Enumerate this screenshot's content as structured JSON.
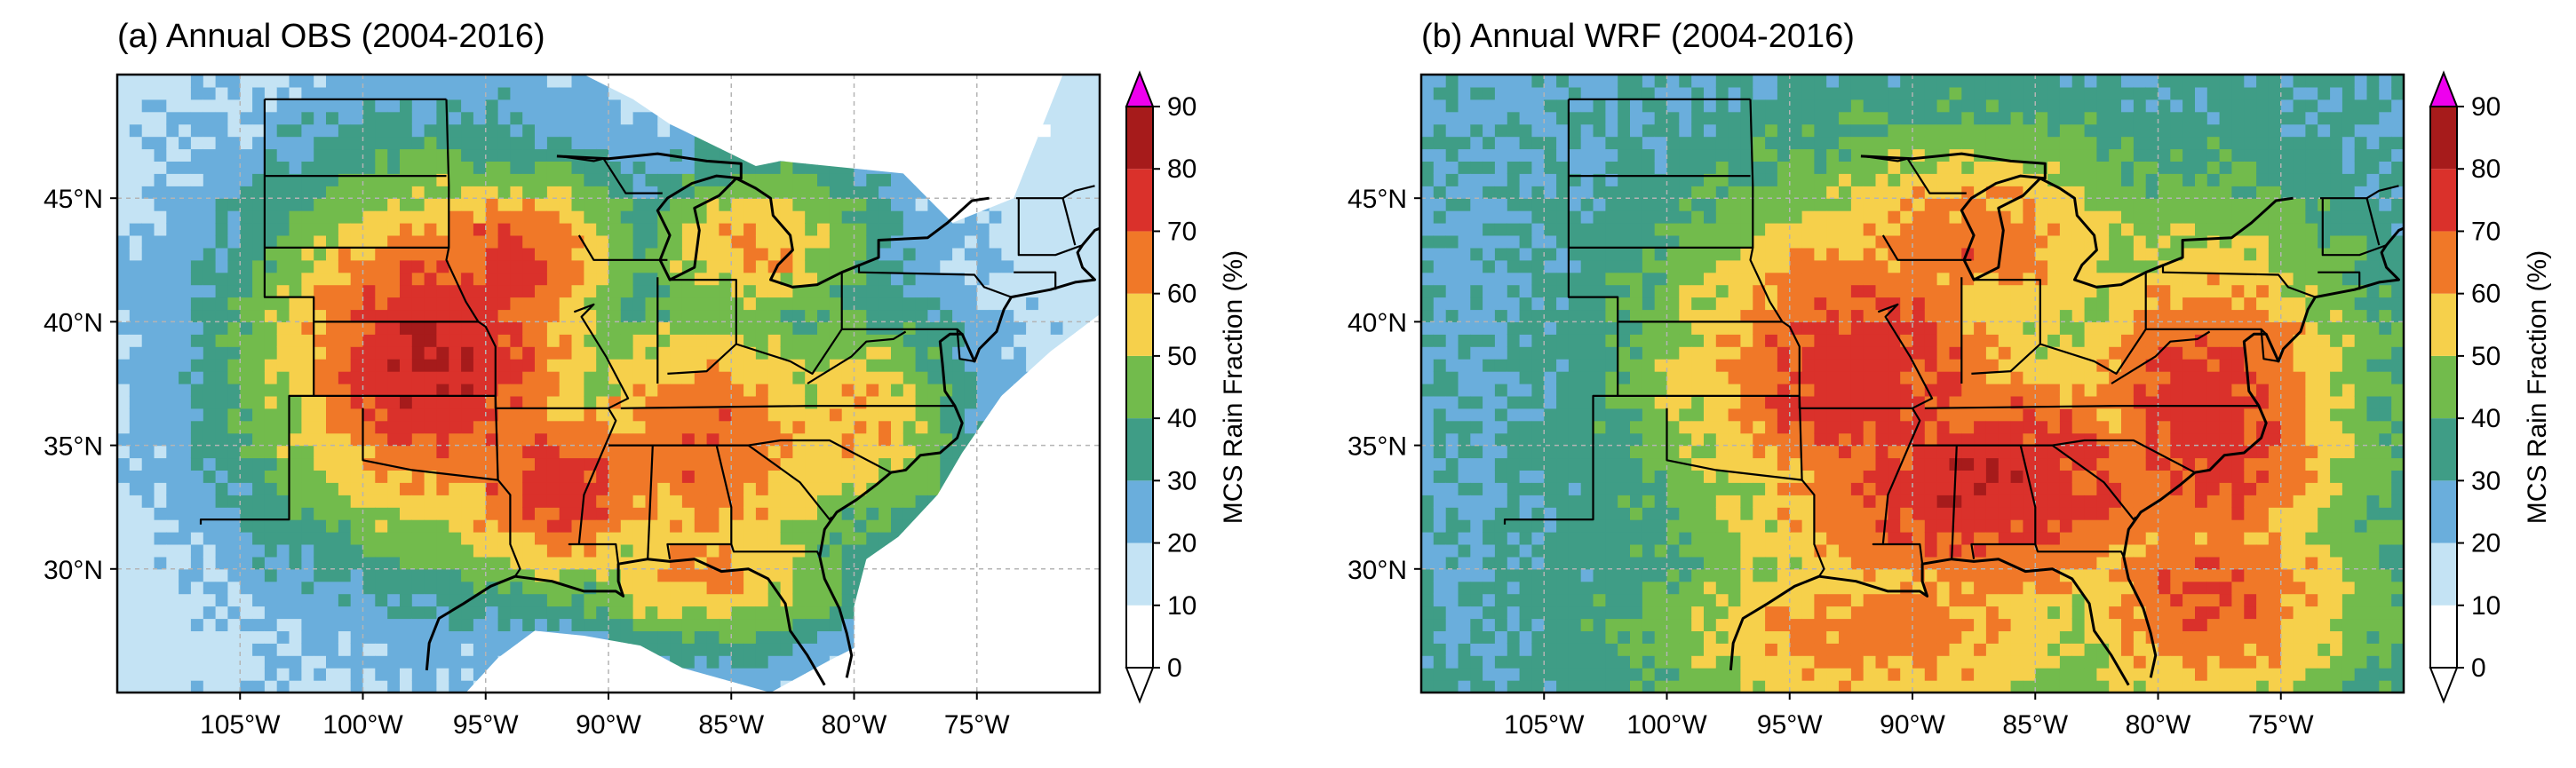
{
  "figure": {
    "panels": [
      {
        "title": "(a) Annual OBS (2004-2016)"
      },
      {
        "title": "(b) Annual WRF (2004-2016)"
      }
    ]
  },
  "colors": {
    "bins": [
      "#ffffff",
      "#c4e3f4",
      "#6aaedc",
      "#3f9d86",
      "#72bb4c",
      "#f6d04b",
      "#f07828",
      "#da312b",
      "#a61b1b"
    ],
    "extend_max": "#ee00ee",
    "ocean": "#ffffff",
    "boundary": "#000000",
    "grid": "#b4b4b4"
  },
  "chart_data": [
    {
      "type": "heatmap",
      "title": "(a) Annual OBS (2004-2016)",
      "xlabel": "",
      "ylabel": "",
      "xlim": [
        -110,
        -70
      ],
      "ylim": [
        25,
        50
      ],
      "x_ticks": [
        -105,
        -100,
        -95,
        -90,
        -85,
        -80,
        -75
      ],
      "x_tick_labels": [
        "105°W",
        "100°W",
        "95°W",
        "90°W",
        "85°W",
        "80°W",
        "75°W"
      ],
      "y_ticks": [
        30,
        35,
        40,
        45
      ],
      "y_tick_labels": [
        "30°N",
        "35°N",
        "40°N",
        "45°N"
      ],
      "grid": true,
      "colorbar": {
        "label": "MCS Rain Fraction (%)",
        "levels": [
          0,
          10,
          20,
          30,
          40,
          50,
          60,
          70,
          80,
          90
        ],
        "level_labels": [
          "0",
          "10",
          "20",
          "30",
          "40",
          "50",
          "60",
          "70",
          "80",
          "90"
        ],
        "extend": "both"
      },
      "field": {
        "description": "MCS rain fraction (%) over the central and eastern United States, observations",
        "peaks": [
          {
            "lon": -97.0,
            "lat": 38.5,
            "value": 80,
            "sx": 6.0,
            "sy": 6.0
          },
          {
            "lon": -94.0,
            "lat": 42.5,
            "value": 75,
            "sx": 4.0,
            "sy": 3.0
          },
          {
            "lon": -92.0,
            "lat": 33.5,
            "value": 75,
            "sx": 5.0,
            "sy": 3.5
          },
          {
            "lon": -86.0,
            "lat": 35.0,
            "value": 68,
            "sx": 6.0,
            "sy": 5.0
          },
          {
            "lon": -86.0,
            "lat": 30.0,
            "value": 62,
            "sx": 5.0,
            "sy": 2.5
          },
          {
            "lon": -80.0,
            "lat": 36.0,
            "value": 60,
            "sx": 3.5,
            "sy": 4.0
          },
          {
            "lon": -84.0,
            "lat": 43.0,
            "value": 60,
            "sx": 4.0,
            "sy": 3.0
          }
        ],
        "background": 14,
        "coverage": "radar domain; no data over most of the Gulf of Mexico and far Atlantic"
      }
    },
    {
      "type": "heatmap",
      "title": "(b) Annual WRF (2004-2016)",
      "xlabel": "",
      "ylabel": "",
      "xlim": [
        -110,
        -70
      ],
      "ylim": [
        25,
        50
      ],
      "x_ticks": [
        -105,
        -100,
        -95,
        -90,
        -85,
        -80,
        -75
      ],
      "x_tick_labels": [
        "105°W",
        "100°W",
        "95°W",
        "90°W",
        "85°W",
        "80°W",
        "75°W"
      ],
      "y_ticks": [
        30,
        35,
        40,
        45
      ],
      "y_tick_labels": [
        "30°N",
        "35°N",
        "40°N",
        "45°N"
      ],
      "grid": true,
      "colorbar": {
        "label": "MCS Rain Fraction (%)",
        "levels": [
          0,
          10,
          20,
          30,
          40,
          50,
          60,
          70,
          80,
          90
        ],
        "level_labels": [
          "0",
          "10",
          "20",
          "30",
          "40",
          "50",
          "60",
          "70",
          "80",
          "90"
        ],
        "extend": "both"
      },
      "field": {
        "description": "MCS rain fraction (%) over the central and eastern United States, WRF simulation",
        "peaks": [
          {
            "lon": -92.0,
            "lat": 38.0,
            "value": 76,
            "sx": 6.0,
            "sy": 5.5
          },
          {
            "lon": -87.0,
            "lat": 33.5,
            "value": 78,
            "sx": 8.0,
            "sy": 4.5
          },
          {
            "lon": -78.0,
            "lat": 36.0,
            "value": 76,
            "sx": 4.5,
            "sy": 6.0
          },
          {
            "lon": -88.0,
            "lat": 43.0,
            "value": 66,
            "sx": 6.0,
            "sy": 3.5
          },
          {
            "lon": -91.0,
            "lat": 27.5,
            "value": 66,
            "sx": 7.0,
            "sy": 3.0
          },
          {
            "lon": -78.0,
            "lat": 29.0,
            "value": 70,
            "sx": 5.0,
            "sy": 4.0
          }
        ],
        "background": 28,
        "coverage": "full model domain, including Gulf of Mexico and Atlantic"
      }
    }
  ]
}
